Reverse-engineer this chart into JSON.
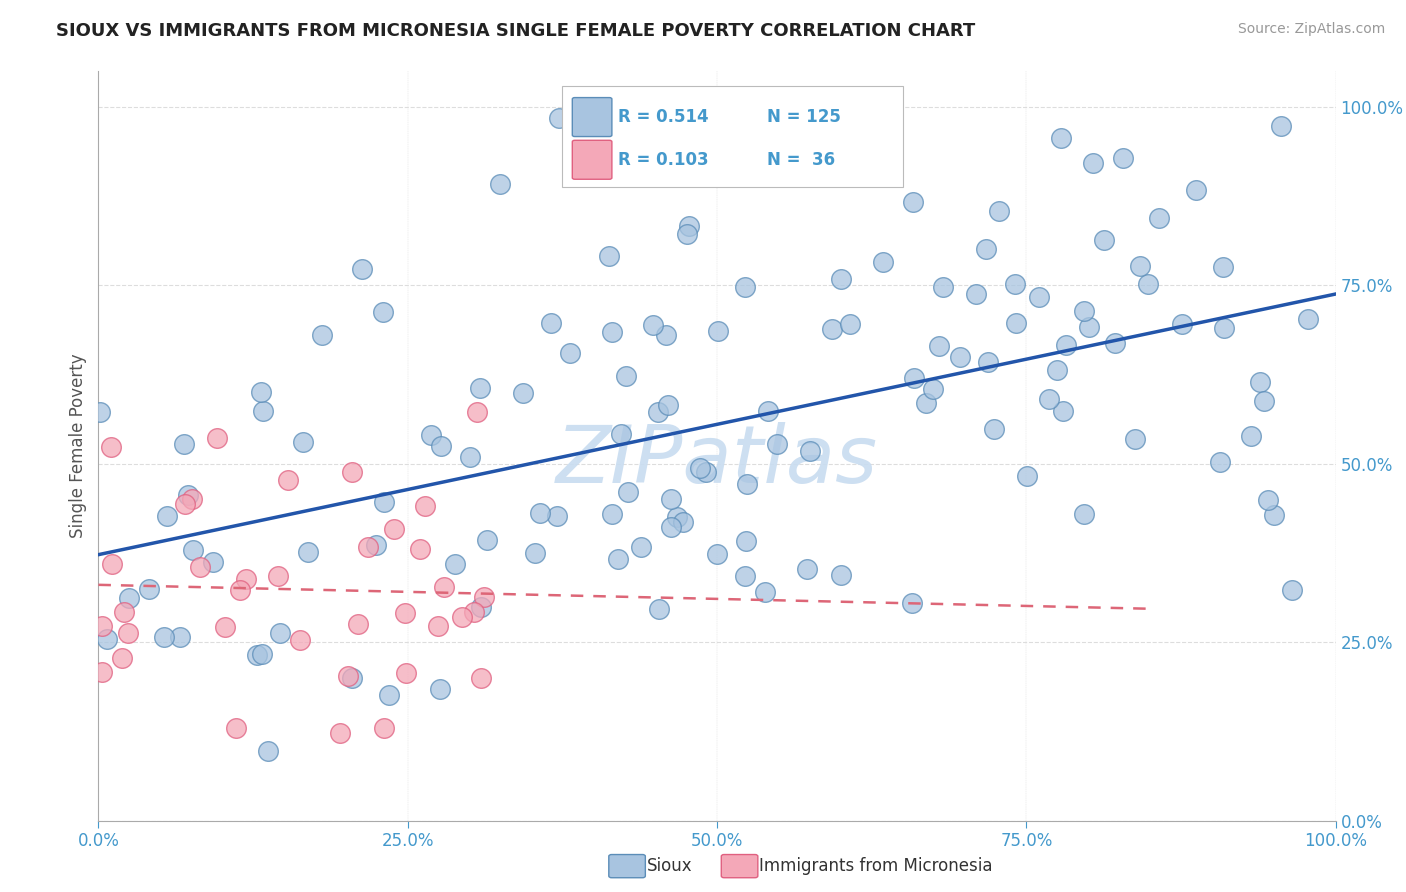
{
  "title": "SIOUX VS IMMIGRANTS FROM MICRONESIA SINGLE FEMALE POVERTY CORRELATION CHART",
  "source": "Source: ZipAtlas.com",
  "ylabel": "Single Female Poverty",
  "sioux_R": 0.514,
  "sioux_N": 125,
  "micro_R": 0.103,
  "micro_N": 36,
  "sioux_color": "#A8C4E0",
  "micro_color": "#F4A8B8",
  "sioux_edge_color": "#5B8DB8",
  "micro_edge_color": "#E06080",
  "sioux_line_color": "#2255AA",
  "micro_line_color": "#DD6677",
  "watermark_color": "#C8DCF0",
  "background_color": "#FFFFFF",
  "grid_color": "#DDDDDD",
  "tick_color": "#4499CC",
  "sioux_line_intercept": 0.34,
  "sioux_line_slope": 0.42,
  "micro_line_intercept": 0.3,
  "micro_line_slope": 0.1
}
